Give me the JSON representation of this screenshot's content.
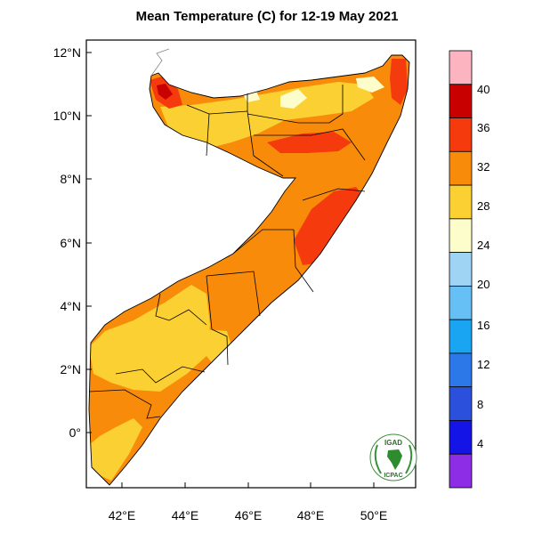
{
  "title": "Mean Temperature (C) for 12-19 May 2021",
  "lat_labels": [
    "12°N",
    "10°N",
    "8°N",
    "6°N",
    "4°N",
    "2°N",
    "0°"
  ],
  "lon_labels": [
    "42°E",
    "44°E",
    "46°E",
    "48°E",
    "50°E"
  ],
  "colorbar": {
    "labels": [
      "40",
      "36",
      "32",
      "28",
      "24",
      "20",
      "16",
      "12",
      "8",
      "4"
    ],
    "colors": [
      "#fbb4c0",
      "#c80000",
      "#f53a0e",
      "#f88c0a",
      "#fbd033",
      "#fdfccb",
      "#9fd4f5",
      "#66c0f5",
      "#1aa5f2",
      "#2d78e8",
      "#2a50dc",
      "#1414e6",
      "#8d2ee6"
    ]
  },
  "logo": {
    "top_text": "IGAD",
    "bottom_text": "ICPAC"
  },
  "map_colors": {
    "ocean": "#ffffff",
    "land_base": "#f88c0a",
    "warm_patch": "#f53a0e",
    "hot_patch": "#c80000",
    "cool_patch": "#fbd033",
    "coolest_patch": "#fdfccb"
  },
  "chart_data": {
    "type": "heatmap",
    "title": "Mean Temperature (C) for 12-19 May 2021",
    "xlabel": "",
    "ylabel": "",
    "xlim": [
      41,
      51.5
    ],
    "ylim": [
      -1.8,
      12.3
    ],
    "x_ticks": [
      "42°E",
      "44°E",
      "46°E",
      "48°E",
      "50°E"
    ],
    "y_ticks": [
      "12°N",
      "10°N",
      "8°N",
      "6°N",
      "4°N",
      "2°N",
      "0°"
    ],
    "colorbar_levels": [
      4,
      8,
      12,
      16,
      20,
      24,
      28,
      32,
      36,
      40
    ],
    "region": "Somalia"
  }
}
